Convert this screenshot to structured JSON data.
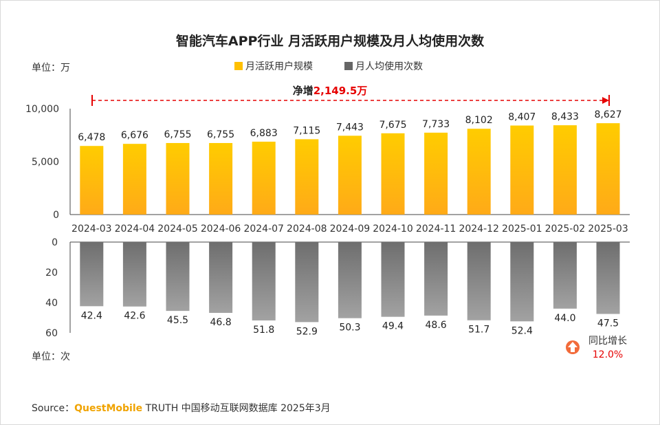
{
  "chart_data": {
    "type": "bar",
    "title": "智能汽车APP行业 月活跃用户规模及月人均使用次数",
    "legend": [
      "月活跃用户规模",
      "月人均使用次数"
    ],
    "legend_placement": "top-center",
    "categories": [
      "2024-03",
      "2024-04",
      "2024-05",
      "2024-06",
      "2024-07",
      "2024-08",
      "2024-09",
      "2024-10",
      "2024-11",
      "2024-12",
      "2025-01",
      "2025-02",
      "2025-03"
    ],
    "series": [
      {
        "name": "月活跃用户规模",
        "values": [
          6478,
          6676,
          6755,
          6755,
          6883,
          7115,
          7443,
          7675,
          7733,
          8102,
          8407,
          8433,
          8627
        ],
        "labels": [
          "6,478",
          "6,676",
          "6,755",
          "6,755",
          "6,883",
          "7,115",
          "7,443",
          "7,675",
          "7,733",
          "8,102",
          "8,407",
          "8,433",
          "8,627"
        ],
        "unit_label": "单位：万",
        "ylim": [
          0,
          10000
        ],
        "yticks": [
          "10,000",
          "5,000",
          "0"
        ],
        "color": "#ffc000"
      },
      {
        "name": "月人均使用次数",
        "values": [
          42.4,
          42.6,
          45.5,
          46.8,
          51.8,
          52.9,
          50.3,
          49.4,
          48.6,
          51.7,
          52.4,
          44.0,
          47.5
        ],
        "labels": [
          "42.4",
          "42.6",
          "45.5",
          "46.8",
          "51.8",
          "52.9",
          "50.3",
          "49.4",
          "48.6",
          "51.7",
          "52.4",
          "44.0",
          "47.5"
        ],
        "unit_label": "单位：次",
        "ylim": [
          0,
          60
        ],
        "yticks": [
          "0",
          "20",
          "40",
          "60"
        ],
        "inverted": true,
        "color": "#808080"
      }
    ],
    "annotations": {
      "net_increase_prefix": "净增",
      "net_increase_value": "2,149.5万",
      "yoy_label": "同比增长",
      "yoy_value": "12.0%"
    },
    "grid": false
  },
  "source": {
    "prefix": "Source：",
    "brand": "QuestMobile",
    "rest": "TRUTH 中国移动互联网数据库 2025年3月"
  }
}
